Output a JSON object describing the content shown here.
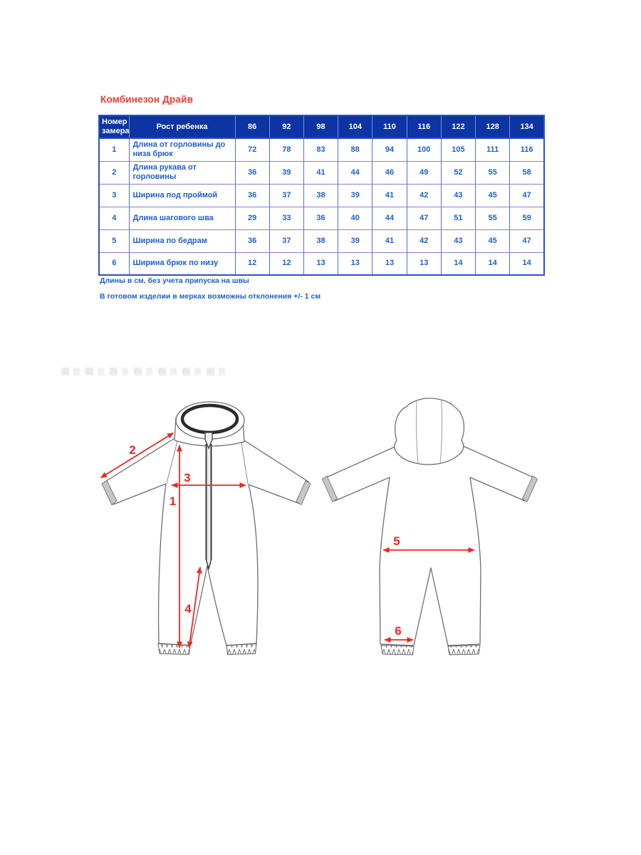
{
  "title": "Комбинезон Драйв",
  "table": {
    "header": {
      "col_measure_number": "Номер замера",
      "col_height": "Рост ребенка",
      "sizes": [
        "86",
        "92",
        "98",
        "104",
        "110",
        "116",
        "122",
        "128",
        "134"
      ]
    },
    "rows": [
      {
        "num": "1",
        "label": "Длина от горловины до низа брюк",
        "values": [
          "72",
          "78",
          "83",
          "88",
          "94",
          "100",
          "105",
          "111",
          "116"
        ]
      },
      {
        "num": "2",
        "label": "Длина рукава от горловины",
        "values": [
          "36",
          "39",
          "41",
          "44",
          "46",
          "49",
          "52",
          "55",
          "58"
        ]
      },
      {
        "num": "3",
        "label": "Ширина под проймой",
        "values": [
          "36",
          "37",
          "38",
          "39",
          "41",
          "42",
          "43",
          "45",
          "47"
        ]
      },
      {
        "num": "4",
        "label": "Длина шагового шва",
        "values": [
          "29",
          "33",
          "36",
          "40",
          "44",
          "47",
          "51",
          "55",
          "59"
        ]
      },
      {
        "num": "5",
        "label": "Ширина по бедрам",
        "values": [
          "36",
          "37",
          "38",
          "39",
          "41",
          "42",
          "43",
          "45",
          "47"
        ]
      },
      {
        "num": "6",
        "label": "Ширина брюк по низу",
        "values": [
          "12",
          "12",
          "13",
          "13",
          "13",
          "13",
          "14",
          "14",
          "14"
        ]
      }
    ]
  },
  "notes": [
    "Длины в см, без учета припуска на швы",
    "В готовом изделии в мерках возможны отклонения +/- 1 см"
  ],
  "diagram": {
    "measure_labels": {
      "m1": "1",
      "m2": "2",
      "m3": "3",
      "m4": "4",
      "m5": "5",
      "m6": "6"
    }
  },
  "colors": {
    "title_red": "#ee3b30",
    "arrow_red": "#ee2624",
    "header_bg": "#0d34a4",
    "header_text": "#ffffff",
    "cell_text": "#1e5fce",
    "border_outer": "#2d52bd",
    "border_vertical": "#4a72d2",
    "border_horizontal": "#8a7ad6"
  }
}
